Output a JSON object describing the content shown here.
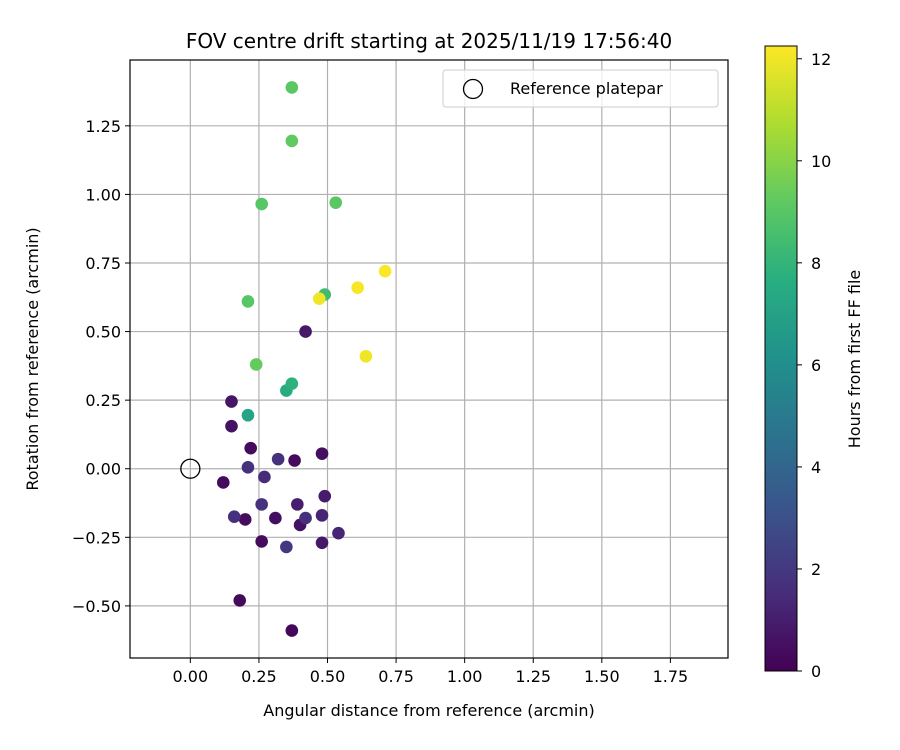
{
  "chart_data": {
    "type": "scatter",
    "title": "FOV centre drift starting at 2025/11/19 17:56:40",
    "xlabel": "Angular distance from reference (arcmin)",
    "ylabel": "Rotation from reference (arcmin)",
    "xlim": [
      -0.22,
      1.96
    ],
    "ylim": [
      -0.69,
      1.49
    ],
    "xticks": [
      0.0,
      0.25,
      0.5,
      0.75,
      1.0,
      1.25,
      1.5,
      1.75
    ],
    "xtick_labels": [
      "0.00",
      "0.25",
      "0.50",
      "0.75",
      "1.00",
      "1.25",
      "1.50",
      "1.75"
    ],
    "yticks": [
      -0.5,
      -0.25,
      0.0,
      0.25,
      0.5,
      0.75,
      1.0,
      1.25
    ],
    "ytick_labels": [
      "−0.50",
      "−0.25",
      "0.00",
      "0.25",
      "0.50",
      "0.75",
      "1.00",
      "1.25"
    ],
    "grid": true,
    "legend": {
      "location": "upper right",
      "label": "Reference platepar"
    },
    "reference_point": {
      "x": 0.0,
      "y": 0.0
    },
    "colorbar": {
      "label": "Hours from first FF file",
      "min": 0,
      "max": 12.25,
      "ticks": [
        0,
        2,
        4,
        6,
        8,
        10,
        12
      ],
      "tick_labels": [
        "0",
        "2",
        "4",
        "6",
        "8",
        "10",
        "12"
      ],
      "colormap": "viridis"
    },
    "points": [
      {
        "x": 0.37,
        "y": -0.59,
        "h": 0.2
      },
      {
        "x": 0.18,
        "y": -0.48,
        "h": 0.3
      },
      {
        "x": 0.26,
        "y": -0.265,
        "h": 0.4
      },
      {
        "x": 0.48,
        "y": -0.27,
        "h": 0.8
      },
      {
        "x": 0.35,
        "y": -0.285,
        "h": 1.9
      },
      {
        "x": 0.54,
        "y": -0.235,
        "h": 1.3
      },
      {
        "x": 0.4,
        "y": -0.205,
        "h": 0.6
      },
      {
        "x": 0.42,
        "y": -0.18,
        "h": 1.7
      },
      {
        "x": 0.31,
        "y": -0.18,
        "h": 0.5
      },
      {
        "x": 0.2,
        "y": -0.185,
        "h": 0.4
      },
      {
        "x": 0.16,
        "y": -0.175,
        "h": 1.6
      },
      {
        "x": 0.48,
        "y": -0.17,
        "h": 1.2
      },
      {
        "x": 0.39,
        "y": -0.13,
        "h": 1.0
      },
      {
        "x": 0.26,
        "y": -0.13,
        "h": 1.8
      },
      {
        "x": 0.49,
        "y": -0.1,
        "h": 0.9
      },
      {
        "x": 0.12,
        "y": -0.05,
        "h": 0.4
      },
      {
        "x": 0.27,
        "y": -0.03,
        "h": 1.5
      },
      {
        "x": 0.21,
        "y": 0.005,
        "h": 1.7
      },
      {
        "x": 0.32,
        "y": 0.035,
        "h": 1.7
      },
      {
        "x": 0.38,
        "y": 0.03,
        "h": 0.3
      },
      {
        "x": 0.48,
        "y": 0.055,
        "h": 0.5
      },
      {
        "x": 0.22,
        "y": 0.075,
        "h": 0.4
      },
      {
        "x": 0.15,
        "y": 0.155,
        "h": 0.6
      },
      {
        "x": 0.15,
        "y": 0.245,
        "h": 0.7
      },
      {
        "x": 0.21,
        "y": 0.195,
        "h": 7.2
      },
      {
        "x": 0.35,
        "y": 0.285,
        "h": 7.5
      },
      {
        "x": 0.37,
        "y": 0.31,
        "h": 7.8
      },
      {
        "x": 0.24,
        "y": 0.38,
        "h": 9.3
      },
      {
        "x": 0.42,
        "y": 0.5,
        "h": 0.8
      },
      {
        "x": 0.21,
        "y": 0.61,
        "h": 9.0
      },
      {
        "x": 0.49,
        "y": 0.635,
        "h": 8.4
      },
      {
        "x": 0.47,
        "y": 0.62,
        "h": 12.0
      },
      {
        "x": 0.64,
        "y": 0.41,
        "h": 12.0
      },
      {
        "x": 0.61,
        "y": 0.66,
        "h": 12.1
      },
      {
        "x": 0.71,
        "y": 0.72,
        "h": 12.2
      },
      {
        "x": 0.26,
        "y": 0.965,
        "h": 9.0
      },
      {
        "x": 0.53,
        "y": 0.97,
        "h": 9.1
      },
      {
        "x": 0.37,
        "y": 1.195,
        "h": 9.2
      },
      {
        "x": 0.37,
        "y": 1.39,
        "h": 9.1
      }
    ]
  }
}
